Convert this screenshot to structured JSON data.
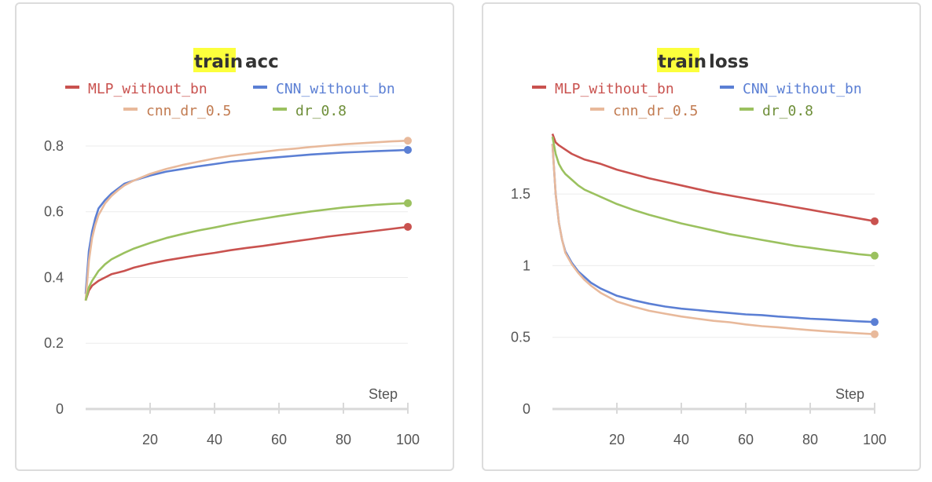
{
  "colors": {
    "MLP_without_bn": "#c9524f",
    "CNN_without_bn": "#5b7fd4",
    "cnn_dr_0.5": "#e8b99b",
    "dr_0.8": "#9bc15f",
    "axis": "#d9d9d9",
    "grid": "#ebebeb",
    "title_highlight": "#fcff3c"
  },
  "chart_data": [
    {
      "type": "line",
      "title": "train acc",
      "title_highlight": "train",
      "title_rest": "acc",
      "xlabel": "Step",
      "ylabel": "",
      "xlim": [
        0,
        100
      ],
      "ylim": [
        0,
        0.85
      ],
      "x_ticks": [
        20,
        40,
        60,
        80,
        100
      ],
      "y_ticks": [
        0,
        0.2,
        0.4,
        0.6,
        0.8
      ],
      "y_tick_labels": [
        "0",
        "0.2",
        "0.4",
        "0.6",
        "0.8"
      ],
      "grid": true,
      "legend_position": "top",
      "series": [
        {
          "name": "MLP_without_bn",
          "x": [
            0,
            1,
            2,
            4,
            6,
            8,
            10,
            12,
            15,
            20,
            25,
            30,
            35,
            40,
            45,
            50,
            55,
            60,
            65,
            70,
            75,
            80,
            85,
            90,
            95,
            100
          ],
          "y": [
            0.33,
            0.36,
            0.375,
            0.39,
            0.4,
            0.41,
            0.415,
            0.42,
            0.43,
            0.442,
            0.452,
            0.46,
            0.468,
            0.475,
            0.483,
            0.49,
            0.496,
            0.503,
            0.51,
            0.517,
            0.524,
            0.53,
            0.536,
            0.542,
            0.548,
            0.554
          ]
        },
        {
          "name": "CNN_without_bn",
          "x": [
            0,
            1,
            2,
            3,
            4,
            6,
            8,
            10,
            12,
            15,
            20,
            25,
            30,
            35,
            40,
            45,
            50,
            55,
            60,
            65,
            70,
            75,
            80,
            85,
            90,
            95,
            100
          ],
          "y": [
            0.35,
            0.48,
            0.54,
            0.58,
            0.61,
            0.635,
            0.655,
            0.67,
            0.685,
            0.695,
            0.71,
            0.722,
            0.73,
            0.738,
            0.745,
            0.752,
            0.757,
            0.762,
            0.766,
            0.77,
            0.774,
            0.777,
            0.78,
            0.782,
            0.784,
            0.786,
            0.788
          ]
        },
        {
          "name": "cnn_dr_0.5",
          "x": [
            0,
            1,
            2,
            3,
            4,
            6,
            8,
            10,
            12,
            15,
            20,
            25,
            30,
            35,
            40,
            45,
            50,
            55,
            60,
            65,
            70,
            75,
            80,
            85,
            90,
            95,
            100
          ],
          "y": [
            0.33,
            0.45,
            0.52,
            0.56,
            0.59,
            0.625,
            0.648,
            0.665,
            0.68,
            0.695,
            0.715,
            0.73,
            0.742,
            0.752,
            0.762,
            0.77,
            0.776,
            0.782,
            0.788,
            0.792,
            0.797,
            0.801,
            0.805,
            0.808,
            0.811,
            0.814,
            0.816
          ]
        },
        {
          "name": "dr_0.8",
          "x": [
            0,
            1,
            2,
            3,
            4,
            6,
            8,
            10,
            12,
            15,
            20,
            25,
            30,
            35,
            40,
            45,
            50,
            55,
            60,
            65,
            70,
            75,
            80,
            85,
            90,
            95,
            100
          ],
          "y": [
            0.33,
            0.37,
            0.39,
            0.405,
            0.42,
            0.44,
            0.455,
            0.465,
            0.475,
            0.488,
            0.505,
            0.52,
            0.532,
            0.543,
            0.552,
            0.562,
            0.571,
            0.579,
            0.587,
            0.594,
            0.601,
            0.607,
            0.613,
            0.617,
            0.621,
            0.624,
            0.626
          ]
        }
      ]
    },
    {
      "type": "line",
      "title": "train loss",
      "title_highlight": "train",
      "title_rest": "loss",
      "xlabel": "Step",
      "ylabel": "",
      "xlim": [
        0,
        100
      ],
      "ylim": [
        0,
        1.95
      ],
      "x_ticks": [
        20,
        40,
        60,
        80,
        100
      ],
      "y_ticks": [
        0,
        0.5,
        1,
        1.5
      ],
      "y_tick_labels": [
        "0",
        "0.5",
        "1",
        "1.5"
      ],
      "grid": true,
      "legend_position": "top",
      "series": [
        {
          "name": "MLP_without_bn",
          "x": [
            0,
            1,
            2,
            4,
            6,
            8,
            10,
            15,
            20,
            25,
            30,
            35,
            40,
            45,
            50,
            55,
            60,
            65,
            70,
            75,
            80,
            85,
            90,
            95,
            100
          ],
          "y": [
            1.92,
            1.86,
            1.84,
            1.81,
            1.78,
            1.76,
            1.74,
            1.71,
            1.67,
            1.64,
            1.61,
            1.585,
            1.56,
            1.535,
            1.51,
            1.49,
            1.47,
            1.45,
            1.43,
            1.41,
            1.39,
            1.37,
            1.35,
            1.33,
            1.31
          ]
        },
        {
          "name": "CNN_without_bn",
          "x": [
            0,
            1,
            2,
            3,
            4,
            6,
            8,
            10,
            12,
            15,
            20,
            25,
            30,
            35,
            40,
            45,
            50,
            55,
            60,
            65,
            70,
            75,
            80,
            85,
            90,
            95,
            100
          ],
          "y": [
            1.85,
            1.5,
            1.3,
            1.18,
            1.1,
            1.02,
            0.96,
            0.92,
            0.88,
            0.84,
            0.79,
            0.76,
            0.735,
            0.715,
            0.7,
            0.69,
            0.68,
            0.67,
            0.66,
            0.655,
            0.645,
            0.638,
            0.63,
            0.625,
            0.618,
            0.612,
            0.607
          ]
        },
        {
          "name": "cnn_dr_0.5",
          "x": [
            0,
            1,
            2,
            3,
            4,
            6,
            8,
            10,
            12,
            15,
            20,
            25,
            30,
            35,
            40,
            45,
            50,
            55,
            60,
            65,
            70,
            75,
            80,
            85,
            90,
            95,
            100
          ],
          "y": [
            1.85,
            1.5,
            1.3,
            1.18,
            1.09,
            1.01,
            0.95,
            0.9,
            0.86,
            0.81,
            0.75,
            0.715,
            0.685,
            0.665,
            0.645,
            0.63,
            0.615,
            0.605,
            0.59,
            0.578,
            0.57,
            0.56,
            0.55,
            0.542,
            0.535,
            0.528,
            0.522
          ]
        },
        {
          "name": "dr_0.8",
          "x": [
            0,
            1,
            2,
            3,
            4,
            6,
            8,
            10,
            12,
            15,
            20,
            25,
            30,
            35,
            40,
            45,
            50,
            55,
            60,
            65,
            70,
            75,
            80,
            85,
            90,
            95,
            100
          ],
          "y": [
            1.9,
            1.78,
            1.71,
            1.67,
            1.64,
            1.6,
            1.56,
            1.53,
            1.51,
            1.48,
            1.43,
            1.39,
            1.355,
            1.325,
            1.295,
            1.27,
            1.245,
            1.22,
            1.2,
            1.18,
            1.16,
            1.14,
            1.125,
            1.11,
            1.095,
            1.08,
            1.07
          ]
        }
      ]
    }
  ]
}
